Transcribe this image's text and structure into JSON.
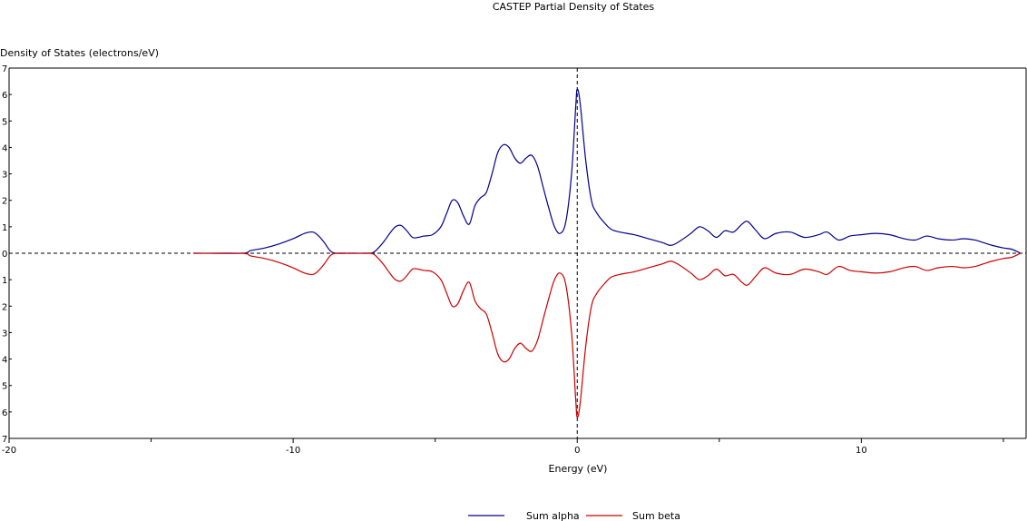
{
  "chart_data": {
    "type": "line",
    "title": "CASTEP Partial  Density of States",
    "ylabel": "Density of States (electrons/eV)",
    "xlabel": "Energy (eV)",
    "xlim": [
      -20,
      15.8
    ],
    "ylim": [
      -7,
      7
    ],
    "x_ticks": [
      -20,
      -10,
      0,
      10
    ],
    "x_minor_ticks": [
      -15,
      -5,
      5,
      15
    ],
    "y_ticks": [
      -7,
      -6,
      -5,
      -4,
      -3,
      -2,
      -1,
      0,
      1,
      2,
      3,
      4,
      5,
      6,
      7
    ],
    "y_tick_labels": [
      "7",
      "6",
      "5",
      "4",
      "3",
      "2",
      "1",
      "0",
      "1",
      "2",
      "3",
      "4",
      "5",
      "6",
      "7"
    ],
    "x_tick_labels": [
      "-20",
      "-10",
      "0",
      "10"
    ],
    "reference_lines": {
      "vertical_x": 0,
      "horizontal_y": 0
    },
    "grid": false,
    "legend_position": "bottom-center",
    "series": [
      {
        "name": "Sum alpha",
        "color": "#00008b",
        "x": [
          -13.5,
          -11.8,
          -11.5,
          -11.0,
          -10.5,
          -10.0,
          -9.6,
          -9.3,
          -9.1,
          -8.9,
          -8.7,
          -8.5,
          -8.0,
          -7.5,
          -7.2,
          -7.0,
          -6.8,
          -6.6,
          -6.4,
          -6.2,
          -6.0,
          -5.8,
          -5.6,
          -5.4,
          -5.1,
          -4.8,
          -4.6,
          -4.4,
          -4.2,
          -4.0,
          -3.8,
          -3.6,
          -3.4,
          -3.2,
          -3.0,
          -2.8,
          -2.6,
          -2.4,
          -2.2,
          -2.0,
          -1.8,
          -1.6,
          -1.4,
          -1.2,
          -1.0,
          -0.8,
          -0.6,
          -0.4,
          -0.2,
          -0.05,
          0.0,
          0.1,
          0.3,
          0.5,
          0.7,
          1.0,
          1.2,
          1.5,
          2.0,
          2.5,
          3.0,
          3.3,
          3.6,
          4.0,
          4.3,
          4.6,
          4.9,
          5.2,
          5.5,
          5.8,
          6.0,
          6.3,
          6.6,
          7.0,
          7.5,
          8.0,
          8.5,
          8.8,
          9.2,
          9.6,
          10.0,
          10.5,
          11.0,
          11.5,
          11.9,
          12.3,
          12.7,
          13.2,
          13.6,
          14.0,
          14.3,
          14.6,
          15.0,
          15.3,
          15.6
        ],
        "y": [
          0,
          0,
          0.1,
          0.2,
          0.35,
          0.55,
          0.75,
          0.8,
          0.65,
          0.4,
          0.1,
          0,
          0,
          0,
          0.02,
          0.2,
          0.45,
          0.75,
          1.0,
          1.05,
          0.85,
          0.6,
          0.6,
          0.65,
          0.7,
          1.0,
          1.5,
          2.0,
          1.9,
          1.4,
          1.1,
          1.8,
          2.1,
          2.3,
          3.0,
          3.8,
          4.1,
          4.0,
          3.6,
          3.4,
          3.6,
          3.7,
          3.3,
          2.5,
          1.7,
          1.0,
          0.75,
          1.2,
          3.0,
          5.6,
          6.2,
          5.7,
          3.5,
          2.0,
          1.5,
          1.1,
          0.9,
          0.8,
          0.7,
          0.55,
          0.4,
          0.3,
          0.45,
          0.75,
          1.0,
          0.85,
          0.6,
          0.85,
          0.8,
          1.1,
          1.2,
          0.85,
          0.55,
          0.75,
          0.8,
          0.6,
          0.7,
          0.8,
          0.5,
          0.65,
          0.7,
          0.75,
          0.7,
          0.55,
          0.5,
          0.65,
          0.55,
          0.5,
          0.55,
          0.5,
          0.4,
          0.3,
          0.2,
          0.15,
          0.0
        ]
      },
      {
        "name": "Sum beta",
        "color": "#cc0000",
        "x": [
          -13.5,
          -11.8,
          -11.5,
          -11.0,
          -10.5,
          -10.0,
          -9.6,
          -9.3,
          -9.1,
          -8.9,
          -8.7,
          -8.5,
          -8.0,
          -7.5,
          -7.2,
          -7.0,
          -6.8,
          -6.6,
          -6.4,
          -6.2,
          -6.0,
          -5.8,
          -5.6,
          -5.4,
          -5.1,
          -4.8,
          -4.6,
          -4.4,
          -4.2,
          -4.0,
          -3.8,
          -3.6,
          -3.4,
          -3.2,
          -3.0,
          -2.8,
          -2.6,
          -2.4,
          -2.2,
          -2.0,
          -1.8,
          -1.6,
          -1.4,
          -1.2,
          -1.0,
          -0.8,
          -0.6,
          -0.4,
          -0.2,
          -0.05,
          0.0,
          0.1,
          0.3,
          0.5,
          0.7,
          1.0,
          1.2,
          1.5,
          2.0,
          2.5,
          3.0,
          3.3,
          3.6,
          4.0,
          4.3,
          4.6,
          4.9,
          5.2,
          5.5,
          5.8,
          6.0,
          6.3,
          6.6,
          7.0,
          7.5,
          8.0,
          8.5,
          8.8,
          9.2,
          9.6,
          10.0,
          10.5,
          11.0,
          11.5,
          11.9,
          12.3,
          12.7,
          13.2,
          13.6,
          14.0,
          14.3,
          14.6,
          15.0,
          15.3,
          15.6
        ],
        "y": [
          0,
          0,
          -0.1,
          -0.2,
          -0.35,
          -0.55,
          -0.75,
          -0.8,
          -0.65,
          -0.4,
          -0.1,
          0,
          0,
          0,
          -0.02,
          -0.2,
          -0.45,
          -0.75,
          -1.0,
          -1.05,
          -0.85,
          -0.6,
          -0.6,
          -0.65,
          -0.7,
          -1.0,
          -1.5,
          -2.0,
          -1.9,
          -1.4,
          -1.1,
          -1.8,
          -2.1,
          -2.3,
          -3.0,
          -3.8,
          -4.1,
          -4.0,
          -3.6,
          -3.4,
          -3.6,
          -3.7,
          -3.3,
          -2.5,
          -1.7,
          -1.0,
          -0.75,
          -1.2,
          -3.0,
          -5.6,
          -6.2,
          -5.7,
          -3.5,
          -2.0,
          -1.5,
          -1.1,
          -0.9,
          -0.8,
          -0.7,
          -0.55,
          -0.4,
          -0.3,
          -0.45,
          -0.75,
          -1.0,
          -0.85,
          -0.6,
          -0.85,
          -0.8,
          -1.1,
          -1.2,
          -0.85,
          -0.55,
          -0.75,
          -0.8,
          -0.6,
          -0.7,
          -0.8,
          -0.5,
          -0.65,
          -0.7,
          -0.75,
          -0.7,
          -0.55,
          -0.5,
          -0.65,
          -0.55,
          -0.5,
          -0.55,
          -0.5,
          -0.4,
          -0.3,
          -0.2,
          -0.15,
          0.0
        ]
      }
    ]
  }
}
